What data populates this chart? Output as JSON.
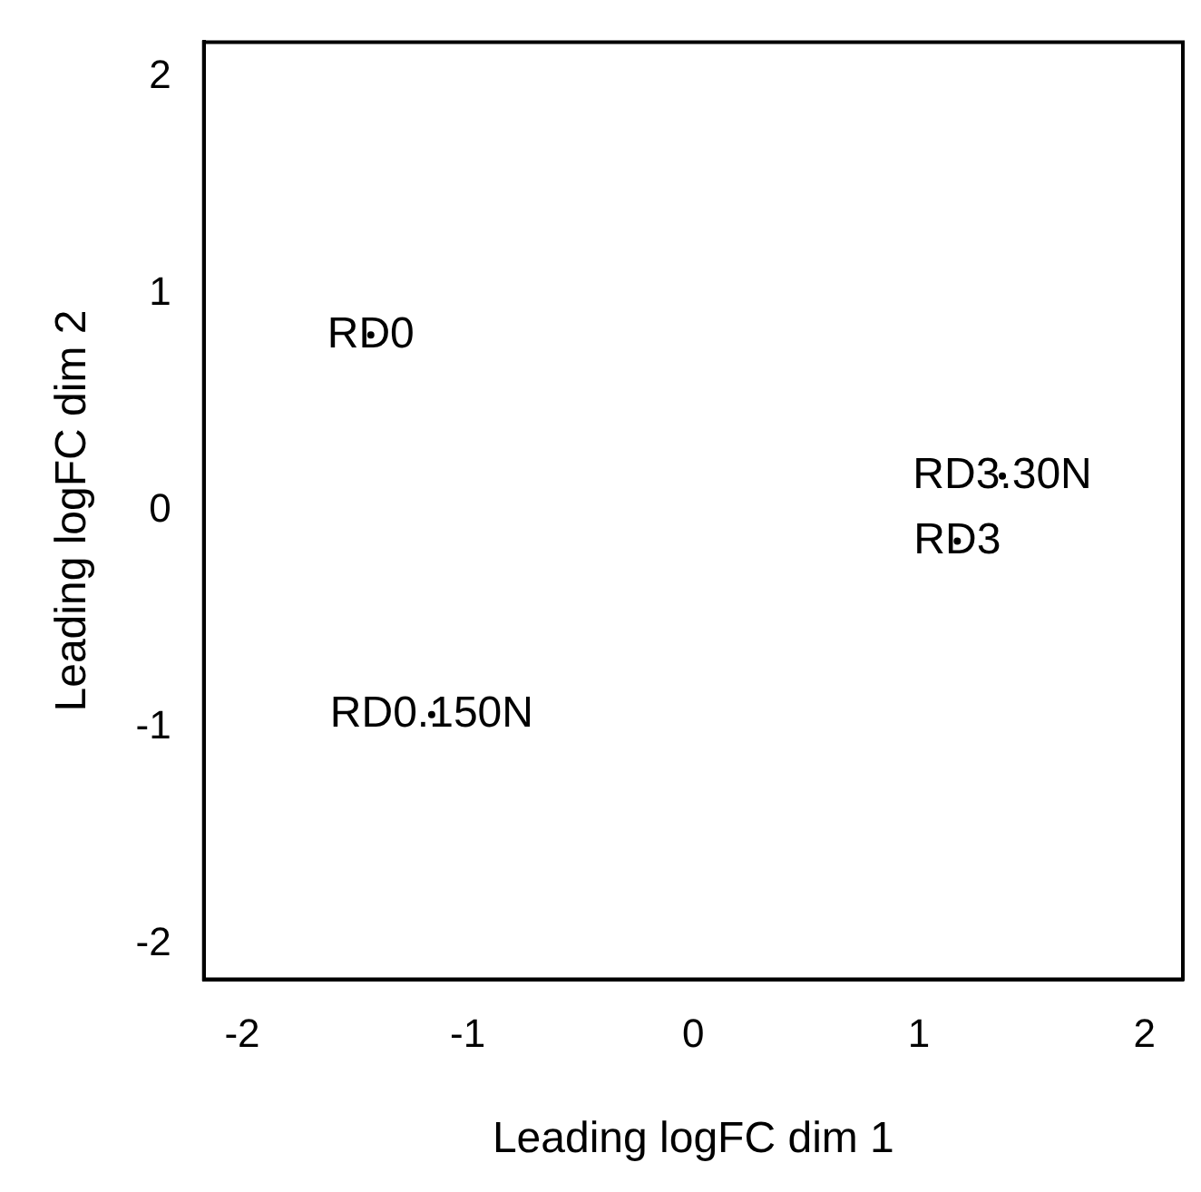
{
  "chart_data": {
    "type": "scatter",
    "xlabel": "Leading logFC dim 1",
    "ylabel": "Leading logFC dim 2",
    "xlim": [
      -2.17,
      2.17
    ],
    "ylim": [
      -2.16,
      2.16
    ],
    "xticks": [
      -2,
      -1,
      0,
      1,
      2
    ],
    "yticks": [
      -2,
      -1,
      0,
      1,
      2
    ],
    "grid": false,
    "legend": false,
    "series": [
      {
        "name": "RD0",
        "color": "#000000",
        "x": [
          -1.43
        ],
        "values": [
          0.81
        ]
      },
      {
        "name": "RD0.150N",
        "color": "#000000",
        "x": [
          -1.16
        ],
        "values": [
          -0.94
        ]
      },
      {
        "name": "RD3.30N",
        "color": "#000000",
        "x": [
          1.37
        ],
        "values": [
          0.16
        ]
      },
      {
        "name": "RD3",
        "color": "#000000",
        "x": [
          1.17
        ],
        "values": [
          -0.14
        ]
      }
    ]
  }
}
